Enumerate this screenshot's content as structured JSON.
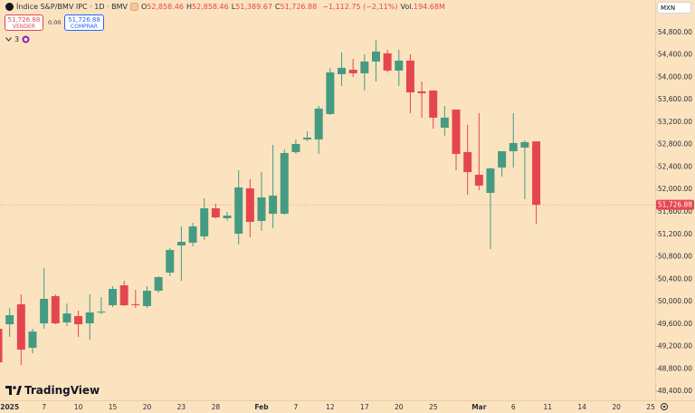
{
  "ui": {
    "title": "Índice S&P/BMV IPC · 1D · BMV",
    "ohlc": [
      {
        "label": "O",
        "value": "52,858.46"
      },
      {
        "label": "H",
        "value": "52,858.46"
      },
      {
        "label": "L",
        "value": "51,389.67"
      },
      {
        "label": "C",
        "value": "51,726.88"
      }
    ],
    "change": "−1,112.75 (−2,11%)",
    "volume": {
      "label": "Vol.",
      "value": "194.68M"
    },
    "sell": {
      "price": "51,726.88",
      "label": "VENDER"
    },
    "spread": "0.00",
    "buy": {
      "price": "51,726.88",
      "label": "COMPRAR"
    },
    "indicators_count": "3",
    "currency": "MXN",
    "logo": "TradingView"
  },
  "chart_data": {
    "type": "candlestick",
    "categories": [
      null,
      "2025",
      null,
      null,
      "7",
      null,
      null,
      "10",
      null,
      null,
      "15",
      null,
      null,
      "20",
      null,
      null,
      "23",
      null,
      null,
      "28",
      null,
      null,
      null,
      "Feb",
      null,
      null,
      "7",
      null,
      null,
      "12",
      null,
      null,
      "17",
      null,
      null,
      "20",
      null,
      null,
      "25",
      null,
      null,
      null,
      "Mar",
      null,
      null,
      "6",
      null,
      null,
      "11",
      null,
      null,
      "14",
      null,
      null,
      "20",
      null,
      null,
      "25"
    ],
    "series": {
      "open": [
        49516,
        49597,
        49952,
        49176,
        49613,
        50098,
        49629,
        49742,
        49613,
        49807,
        49936,
        50291,
        49952,
        49920,
        50195,
        50518,
        51002,
        51051,
        51164,
        51665,
        51487,
        51212,
        52021,
        51439,
        51568,
        51568,
        52667,
        52893,
        52893,
        53346,
        54057,
        54137,
        54073,
        54283,
        54428,
        54121,
        54299,
        53750,
        53766,
        53103,
        53426,
        52667,
        52263,
        51940,
        52392,
        52683,
        52748,
        52858.46,
        null,
        null,
        null,
        null,
        null,
        null,
        null,
        null,
        null,
        null
      ],
      "high": [
        49645,
        49887,
        50130,
        49516,
        50598,
        50130,
        49968,
        49839,
        50130,
        50082,
        50275,
        50372,
        50211,
        50275,
        50453,
        50954,
        51342,
        51406,
        51843,
        51746,
        51600,
        52344,
        52182,
        52312,
        52796,
        52715,
        52893,
        53039,
        53491,
        54170,
        54445,
        54331,
        54412,
        54671,
        54493,
        54493,
        54412,
        53927,
        53766,
        53491,
        53426,
        53152,
        53362,
        52392,
        52683,
        53362,
        52877,
        52858.46,
        null,
        null,
        null,
        null,
        null,
        null,
        null,
        null,
        null,
        null
      ],
      "low": [
        48837,
        49370,
        48869,
        49079,
        49516,
        49597,
        49564,
        49370,
        49322,
        49775,
        49904,
        49920,
        49888,
        49888,
        50162,
        50453,
        50372,
        50986,
        51099,
        51487,
        51439,
        51019,
        51148,
        51261,
        51309,
        51552,
        52635,
        52861,
        52635,
        53330,
        53847,
        54008,
        53766,
        53927,
        54089,
        53847,
        53362,
        53281,
        53087,
        52958,
        52344,
        51907,
        51988,
        50938,
        52231,
        52392,
        51827,
        51389.67,
        null,
        null,
        null,
        null,
        null,
        null,
        null,
        null,
        null,
        null
      ],
      "close": [
        48918,
        49758,
        49144,
        49467,
        50049,
        49613,
        49790,
        49597,
        49807,
        49823,
        50227,
        49936,
        49936,
        50195,
        50437,
        50922,
        51067,
        51342,
        51665,
        51503,
        51535,
        52037,
        51423,
        51859,
        51891,
        52651,
        52812,
        52925,
        53443,
        54089,
        54170,
        54073,
        54283,
        54461,
        54121,
        54299,
        53733,
        53717,
        53281,
        53281,
        52635,
        52311,
        52069,
        52376,
        52683,
        52829,
        52845,
        51726.88,
        null,
        null,
        null,
        null,
        null,
        null,
        null,
        null,
        null,
        null
      ]
    },
    "up_color": "#459b82",
    "down_color": "#e4464f",
    "ylim": [
      48240,
      55380
    ],
    "yticks": [
      {
        "value": 48400,
        "label": "48,400.00"
      },
      {
        "value": 48800,
        "label": "48,800.00"
      },
      {
        "value": 49200,
        "label": "49,200.00"
      },
      {
        "value": 49600,
        "label": "49,600.00"
      },
      {
        "value": 50000,
        "label": "50,000.00"
      },
      {
        "value": 50400,
        "label": "50,400.00"
      },
      {
        "value": 50800,
        "label": "50,800.00"
      },
      {
        "value": 51200,
        "label": "51,200.00"
      },
      {
        "value": 51600,
        "label": "51,600.00"
      },
      {
        "value": 52000,
        "label": "52,000.00"
      },
      {
        "value": 52400,
        "label": "52,400.00"
      },
      {
        "value": 52800,
        "label": "52,800.00"
      },
      {
        "value": 53200,
        "label": "53,200.00"
      },
      {
        "value": 53600,
        "label": "53,600.00"
      },
      {
        "value": 54000,
        "label": "54,000.00"
      },
      {
        "value": 54400,
        "label": "54,400.00"
      },
      {
        "value": 54800,
        "label": "54,800.00"
      }
    ],
    "last_price": {
      "value": 51726.88,
      "label": "51,726.88"
    },
    "grid": false
  }
}
